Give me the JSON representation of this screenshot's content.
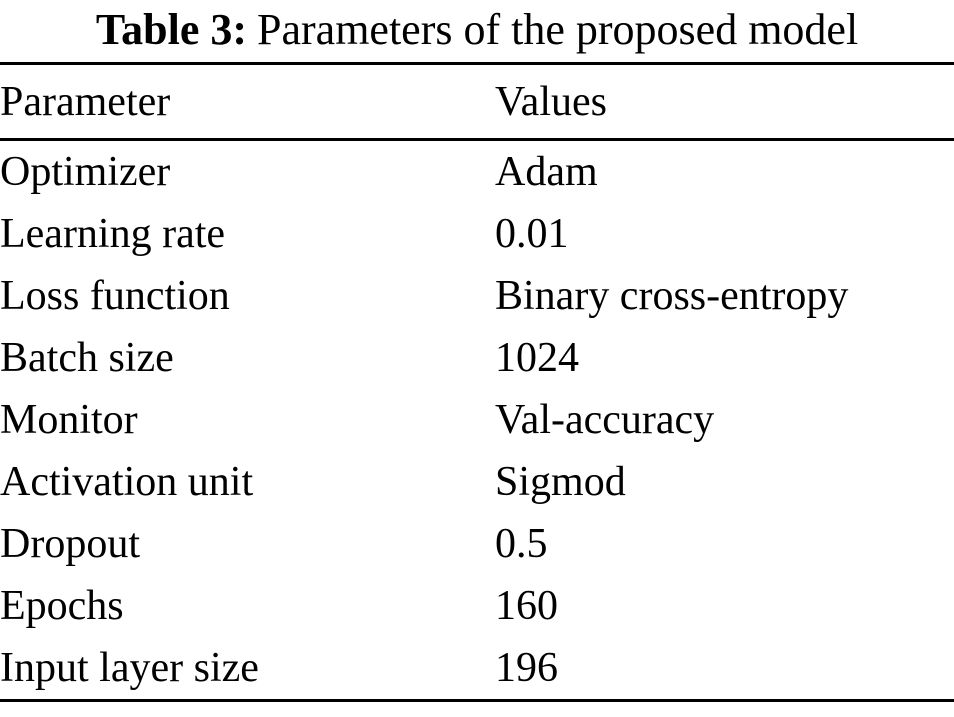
{
  "caption": {
    "label": "Table 3:",
    "text": "Parameters of the proposed model"
  },
  "table": {
    "headers": [
      "Parameter",
      "Values"
    ],
    "rows": [
      {
        "parameter": "Optimizer",
        "value": "Adam"
      },
      {
        "parameter": "Learning rate",
        "value": "0.01"
      },
      {
        "parameter": "Loss function",
        "value": "Binary cross-entropy"
      },
      {
        "parameter": "Batch size",
        "value": "1024"
      },
      {
        "parameter": "Monitor",
        "value": "Val-accuracy"
      },
      {
        "parameter": "Activation unit",
        "value": "Sigmod"
      },
      {
        "parameter": "Dropout",
        "value": "0.5"
      },
      {
        "parameter": "Epochs",
        "value": "160"
      },
      {
        "parameter": "Input layer size",
        "value": "196"
      }
    ]
  },
  "colors": {
    "text": "#000000",
    "background": "#ffffff",
    "rule": "#000000"
  }
}
